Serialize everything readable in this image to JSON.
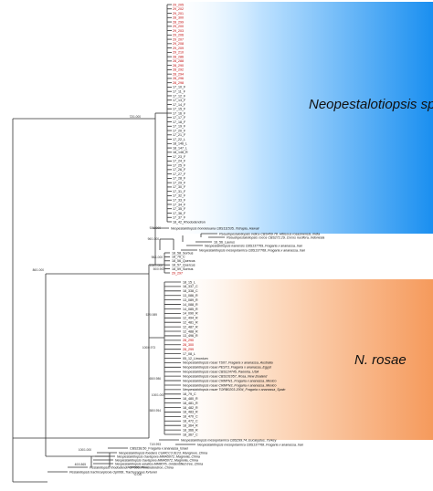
{
  "clades": {
    "neopestalotiopsis": {
      "label": "Neopestalotiopsis sp.",
      "color": "#1a8ff0"
    },
    "rosae": {
      "label": "N. rosae",
      "color": "#f59a5c"
    }
  },
  "scale_label": "0.05",
  "support_values": [
    {
      "text": "72/1.000"
    },
    {
      "text": "86/1.000"
    },
    {
      "text": "92/1.000"
    },
    {
      "text": "96/1.000"
    },
    {
      "text": "98/1.000"
    },
    {
      "text": "100/1.000"
    },
    {
      "text": "50/0.900"
    },
    {
      "text": "53/0.989"
    },
    {
      "text": "100/0.973"
    },
    {
      "text": "65/0.986"
    },
    {
      "text": "100/1.000"
    },
    {
      "text": "58/0.954"
    },
    {
      "text": "71/0.993"
    },
    {
      "text": "100/1.000"
    },
    {
      "text": "40/0.865"
    }
  ],
  "taxa_upper": [
    {
      "text": "29_205",
      "color": "#c00000"
    },
    {
      "text": "29_202",
      "color": "#c00000"
    },
    {
      "text": "29_201",
      "color": "#c00000"
    },
    {
      "text": "28_300",
      "color": "#c00000"
    },
    {
      "text": "28_299",
      "color": "#c00000"
    },
    {
      "text": "29_200",
      "color": "#c00000"
    },
    {
      "text": "29_203",
      "color": "#c00000"
    },
    {
      "text": "29_206",
      "color": "#c00000"
    },
    {
      "text": "29_207",
      "color": "#c00000"
    },
    {
      "text": "29_208",
      "color": "#c00000"
    },
    {
      "text": "29_209",
      "color": "#c00000"
    },
    {
      "text": "29_210",
      "color": "#c00000"
    },
    {
      "text": "28_286",
      "color": "#c00000"
    },
    {
      "text": "28_288",
      "color": "#c00000"
    },
    {
      "text": "28_290",
      "color": "#c00000"
    },
    {
      "text": "28_292",
      "color": "#c00000"
    },
    {
      "text": "28_294",
      "color": "#c00000"
    },
    {
      "text": "28_296",
      "color": "#c00000"
    },
    {
      "text": "28_298",
      "color": "#c00000"
    },
    {
      "text": "17_10_F",
      "color": "#111111"
    },
    {
      "text": "17_11_F",
      "color": "#111111"
    },
    {
      "text": "17_12_F",
      "color": "#111111"
    },
    {
      "text": "17_13_F",
      "color": "#111111"
    },
    {
      "text": "17_14_F",
      "color": "#111111"
    },
    {
      "text": "17_15_F",
      "color": "#111111"
    },
    {
      "text": "17_16_F",
      "color": "#111111"
    },
    {
      "text": "17_17_F",
      "color": "#111111"
    },
    {
      "text": "17_18_F",
      "color": "#111111"
    },
    {
      "text": "17_19_F",
      "color": "#111111"
    },
    {
      "text": "17_20_F",
      "color": "#111111"
    },
    {
      "text": "17_21_F",
      "color": "#111111"
    },
    {
      "text": "17_22_L",
      "color": "#111111"
    },
    {
      "text": "18_146_L",
      "color": "#111111"
    },
    {
      "text": "18_147_L",
      "color": "#111111"
    },
    {
      "text": "18_148_R",
      "color": "#111111"
    },
    {
      "text": "17_23_F",
      "color": "#111111"
    },
    {
      "text": "17_24_F",
      "color": "#111111"
    },
    {
      "text": "17_25_F",
      "color": "#111111"
    },
    {
      "text": "17_26_F",
      "color": "#111111"
    },
    {
      "text": "17_27_F",
      "color": "#111111"
    },
    {
      "text": "17_28_F",
      "color": "#111111"
    },
    {
      "text": "17_29_F",
      "color": "#111111"
    },
    {
      "text": "17_30_F",
      "color": "#111111"
    },
    {
      "text": "17_31_F",
      "color": "#111111"
    },
    {
      "text": "17_32_F",
      "color": "#111111"
    },
    {
      "text": "17_33_F",
      "color": "#111111"
    },
    {
      "text": "17_34_F",
      "color": "#111111"
    },
    {
      "text": "17_35_F",
      "color": "#111111"
    },
    {
      "text": "17_36_F",
      "color": "#111111"
    },
    {
      "text": "17_37_F",
      "color": "#111111"
    },
    {
      "text": "18_42_Rhododendron",
      "color": "#111111"
    }
  ],
  "taxa_middle": [
    {
      "text": "Neopestalotiopsis honoluluana CBS111535_Tetrapia_Hawaii",
      "italic": true
    },
    {
      "text": "Pseudopestalotiopsis indica CBS459.78_Hibiscus rosasinensis_India",
      "italic": true
    },
    {
      "text": "Pseudopestalotiopsis cocos CBS272.29_Cocos nucifera_Indonesia",
      "italic": true
    },
    {
      "text": "16_56_Laurus",
      "italic": false
    },
    {
      "text": "Neopestalotiopsis iranensis CBS137769_Fragaria x ananassa_Iran",
      "italic": true
    },
    {
      "text": "Neopestalotiopsis mesopotamica CBS137768_Fragaria x ananassa_Iran",
      "italic": true
    }
  ],
  "taxa_sorbus": [
    {
      "text": "18_58_Sorbus",
      "color": "#111111"
    },
    {
      "text": "18_76_C",
      "color": "#111111"
    },
    {
      "text": "18_56_Quercus",
      "color": "#111111"
    },
    {
      "text": "18_57_Quercus",
      "color": "#111111"
    },
    {
      "text": "18_59_Sorbus",
      "color": "#111111"
    },
    {
      "text": "29_297",
      "color": "#c00000"
    }
  ],
  "taxa_rosae": [
    {
      "text": "18_15_L",
      "color": "#111111"
    },
    {
      "text": "18_337_C",
      "color": "#111111"
    },
    {
      "text": "18_338_C",
      "color": "#111111"
    },
    {
      "text": "13_086_R",
      "color": "#111111"
    },
    {
      "text": "13_089_R",
      "color": "#111111"
    },
    {
      "text": "14_088_R",
      "color": "#111111"
    },
    {
      "text": "14_085_R",
      "color": "#111111"
    },
    {
      "text": "14_090_R",
      "color": "#111111"
    },
    {
      "text": "12_494_R",
      "color": "#111111"
    },
    {
      "text": "12_481_R",
      "color": "#111111"
    },
    {
      "text": "12_487_R",
      "color": "#111111"
    },
    {
      "text": "12_488_R",
      "color": "#111111"
    },
    {
      "text": "13_496_R",
      "color": "#111111"
    },
    {
      "text": "28_290",
      "color": "#c00000"
    },
    {
      "text": "28_300",
      "color": "#c00000"
    },
    {
      "text": "28_299",
      "color": "#c00000"
    },
    {
      "text": "17_08_L",
      "color": "#111111"
    },
    {
      "text": "05_12_Limonium",
      "color": "#111111"
    },
    {
      "text": "Neopestalotiopsis rosae TS07_Fragaria x ananassa_Australia",
      "color": "#111111",
      "italic": true
    },
    {
      "text": "Neopestalotiopsis rosae PEST3_Fragaria x ananassa_Egypt",
      "color": "#111111",
      "italic": true
    },
    {
      "text": "Neopestalotiopsis rosae CBS124745_Paeonia_USA",
      "color": "#111111",
      "italic": true
    },
    {
      "text": "Neopestalotiopsis rosae CBS101057_Rosa_New Zealand",
      "color": "#111111",
      "italic": true
    },
    {
      "text": "Neopestalotiopsis rosae CRMFN1_Fragaria x ananassa_Mexico",
      "color": "#111111",
      "italic": true
    },
    {
      "text": "Neopestalotiopsis rosae CRMFN3_Fragaria x ananassa_Mexico",
      "color": "#111111",
      "italic": true
    },
    {
      "text": "Neopestalotiopsis rosae TORB0203-2004_Fragaria x ananassa_Spain",
      "color": "#111111",
      "italic": true
    },
    {
      "text": "18_79_C",
      "color": "#111111"
    },
    {
      "text": "18_480_R",
      "color": "#111111"
    },
    {
      "text": "18_481_R",
      "color": "#111111"
    },
    {
      "text": "18_482_R",
      "color": "#111111"
    },
    {
      "text": "18_483_R",
      "color": "#111111"
    },
    {
      "text": "18_470_C",
      "color": "#111111"
    },
    {
      "text": "18_472_C",
      "color": "#111111"
    },
    {
      "text": "18_364_R",
      "color": "#111111"
    },
    {
      "text": "18_366_R",
      "color": "#111111"
    },
    {
      "text": "18_367_C",
      "color": "#111111"
    }
  ],
  "taxa_bottom": [
    {
      "text": "Neopestalotiopsis mesopotamica CBS299.74_Eucalyptus_Turkey",
      "italic": true
    },
    {
      "text": "Neopestalotiopsis mesopotamica CBS137768_Fragaria x ananassa_Iran",
      "italic": true
    },
    {
      "text": "CBS238.50_Fragaria x ananassa_Israel",
      "italic": false
    },
    {
      "text": "Neopestalotiopsis foedans CGMCC3.9123_Mangrove_China",
      "italic": true
    },
    {
      "text": "Neopestalotiopsis clavispora MMA5072_Magnolia_China",
      "italic": true
    },
    {
      "text": "Neopestalotiopsis clavispora MMA5072_Magnolia_China",
      "italic": true
    },
    {
      "text": "Neopestalotiopsis asiatica MM8076_Unidentified tree_China",
      "italic": true
    },
    {
      "text": "Pestalotiopsis rhododendri OP086_Rhododendron_China",
      "italic": true
    },
    {
      "text": "Pestalotiopsis trachicarpicola OpI068_Trachycarpus fortunei",
      "italic": true
    }
  ]
}
